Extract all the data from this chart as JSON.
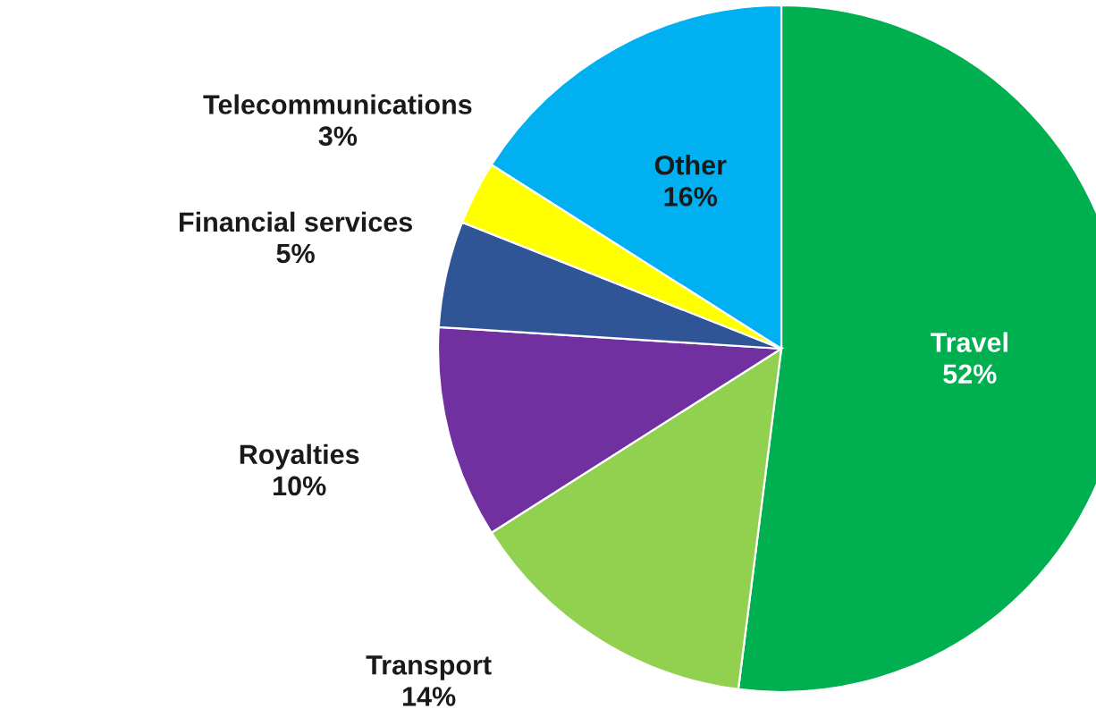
{
  "chart_data": {
    "type": "pie",
    "categories": [
      "Travel",
      "Transport",
      "Royalties",
      "Financial services",
      "Telecommunications",
      "Other"
    ],
    "values": [
      52,
      14,
      10,
      5,
      3,
      16
    ],
    "colors": [
      "#00b050",
      "#92d050",
      "#7030a0",
      "#2f5597",
      "#ffff00",
      "#00b0f0"
    ],
    "value_labels": [
      "52%",
      "14%",
      "10%",
      "5%",
      "3%",
      "16%"
    ]
  }
}
